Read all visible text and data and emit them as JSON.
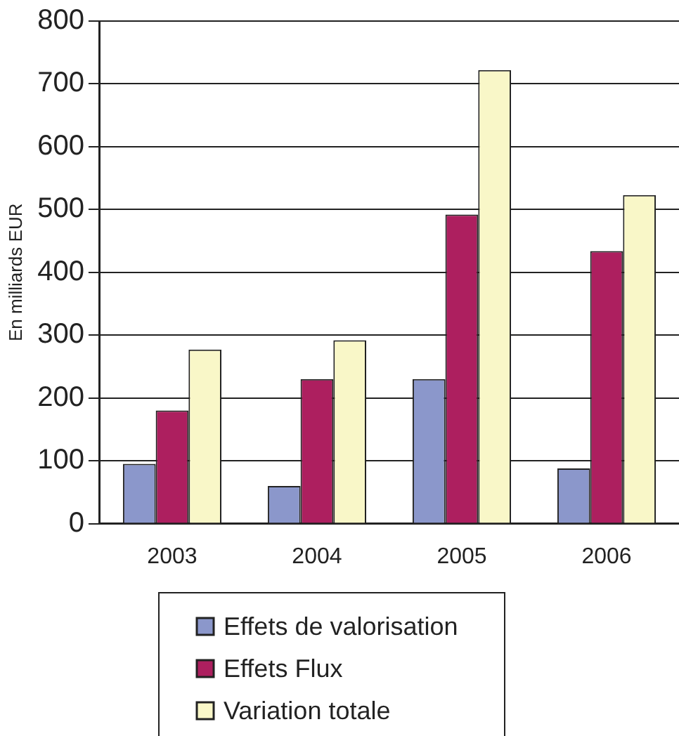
{
  "chart_data": {
    "type": "bar",
    "ylabel": "En milliards EUR",
    "categories": [
      "2003",
      "2004",
      "2005",
      "2006"
    ],
    "series": [
      {
        "name": "Effets de valorisation",
        "color": "#8b97cb",
        "values": [
          95,
          60,
          230,
          88
        ]
      },
      {
        "name": "Effets Flux",
        "color": "#ad1f5f",
        "values": [
          180,
          230,
          492,
          434
        ]
      },
      {
        "name": "Variation totale",
        "color": "#f9f7c8",
        "values": [
          277,
          292,
          722,
          523
        ]
      }
    ],
    "ylim": [
      0,
      800
    ],
    "yticks": [
      0,
      100,
      200,
      300,
      400,
      500,
      600,
      700,
      800
    ],
    "grid": "y",
    "legend": "bottom"
  }
}
